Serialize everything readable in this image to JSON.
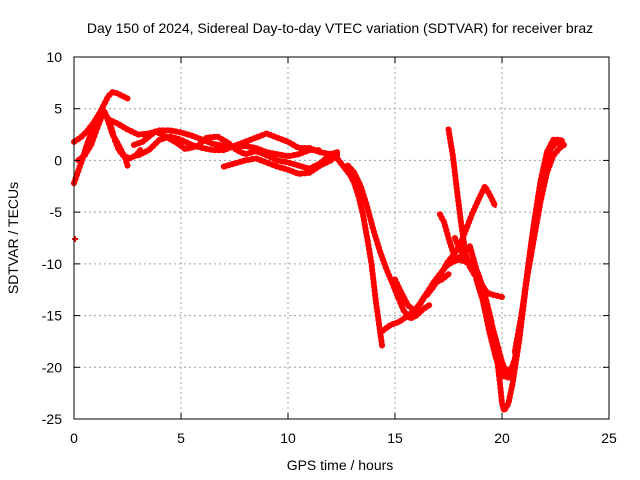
{
  "chart_data": {
    "type": "scatter",
    "title": "Day 150 of 2024, Sidereal Day-to-day VTEC variation (SDTVAR) for receiver braz",
    "xlabel": "GPS time / hours",
    "ylabel": "SDTVAR / TECUs",
    "xlim": [
      0,
      25
    ],
    "ylim": [
      -25,
      10
    ],
    "xticks": [
      0,
      5,
      10,
      15,
      20,
      25
    ],
    "yticks": [
      -25,
      -20,
      -15,
      -10,
      -5,
      0,
      5,
      10
    ],
    "xtick_labels": [
      "0",
      "5",
      "10",
      "15",
      "20",
      "25"
    ],
    "ytick_labels": [
      "-25",
      "-20",
      "-15",
      "-10",
      "-5",
      "0",
      "5",
      "10"
    ],
    "grid": true,
    "marker_color": "#ff0000",
    "series": [
      {
        "name": "track-1",
        "points": [
          [
            0.0,
            1.8
          ],
          [
            0.3,
            2.2
          ],
          [
            0.6,
            2.8
          ],
          [
            0.9,
            3.6
          ],
          [
            1.2,
            4.6
          ],
          [
            1.4,
            5.4
          ],
          [
            1.6,
            6.2
          ],
          [
            1.8,
            6.6
          ],
          [
            2.0,
            6.5
          ],
          [
            2.2,
            6.3
          ],
          [
            2.5,
            6.0
          ]
        ]
      },
      {
        "name": "track-2",
        "points": [
          [
            0.0,
            -2.2
          ],
          [
            0.2,
            -1.0
          ],
          [
            0.4,
            0.2
          ],
          [
            0.6,
            1.5
          ],
          [
            0.8,
            2.6
          ],
          [
            1.0,
            3.6
          ],
          [
            1.2,
            4.4
          ],
          [
            1.4,
            4.8
          ],
          [
            1.6,
            3.8
          ],
          [
            1.8,
            2.5
          ],
          [
            2.0,
            1.8
          ],
          [
            2.2,
            1.0
          ],
          [
            2.4,
            0.2
          ],
          [
            2.5,
            -0.5
          ]
        ]
      },
      {
        "name": "track-3",
        "points": [
          [
            0.2,
            0.0
          ],
          [
            0.5,
            0.5
          ],
          [
            0.8,
            1.5
          ],
          [
            1.1,
            3.2
          ],
          [
            1.4,
            4.8
          ],
          [
            1.7,
            3.5
          ],
          [
            1.9,
            2.0
          ],
          [
            2.1,
            1.0
          ],
          [
            2.3,
            0.5
          ],
          [
            2.6,
            0.2
          ],
          [
            2.9,
            0.5
          ],
          [
            3.1,
            1.0
          ]
        ]
      },
      {
        "name": "track-4",
        "points": [
          [
            1.6,
            4.0
          ],
          [
            2.0,
            3.6
          ],
          [
            2.5,
            3.0
          ],
          [
            3.0,
            2.5
          ],
          [
            3.5,
            2.6
          ],
          [
            4.0,
            2.9
          ],
          [
            4.5,
            2.9
          ],
          [
            5.0,
            2.7
          ],
          [
            5.5,
            2.4
          ],
          [
            6.0,
            2.0
          ],
          [
            6.5,
            1.6
          ],
          [
            7.0,
            1.4
          ],
          [
            7.5,
            1.3
          ],
          [
            8.0,
            1.4
          ],
          [
            8.5,
            1.2
          ],
          [
            9.0,
            0.8
          ],
          [
            9.5,
            0.6
          ],
          [
            10.0,
            0.4
          ],
          [
            10.5,
            0.6
          ],
          [
            11.0,
            1.0
          ],
          [
            11.5,
            1.0
          ]
        ]
      },
      {
        "name": "track-5",
        "points": [
          [
            3.0,
            0.5
          ],
          [
            3.5,
            1.0
          ],
          [
            4.0,
            2.0
          ],
          [
            4.5,
            2.3
          ],
          [
            5.0,
            2.0
          ],
          [
            5.5,
            1.5
          ],
          [
            6.0,
            1.2
          ],
          [
            6.5,
            1.0
          ],
          [
            7.0,
            1.0
          ],
          [
            7.5,
            1.4
          ],
          [
            8.0,
            1.8
          ],
          [
            8.5,
            2.2
          ],
          [
            9.0,
            2.6
          ],
          [
            9.5,
            2.2
          ],
          [
            10.0,
            1.8
          ],
          [
            10.5,
            1.2
          ],
          [
            11.0,
            1.2
          ],
          [
            11.5,
            0.8
          ],
          [
            12.0,
            0.6
          ],
          [
            12.3,
            0.8
          ]
        ]
      },
      {
        "name": "track-6",
        "points": [
          [
            2.8,
            1.5
          ],
          [
            3.2,
            1.8
          ],
          [
            3.8,
            2.8
          ],
          [
            4.2,
            2.4
          ],
          [
            4.8,
            1.7
          ],
          [
            5.2,
            1.1
          ],
          [
            5.8,
            1.4
          ],
          [
            6.2,
            2.2
          ],
          [
            6.7,
            2.3
          ],
          [
            7.2,
            1.7
          ],
          [
            7.6,
            1.0
          ],
          [
            8.0,
            0.6
          ],
          [
            8.5,
            0.9
          ],
          [
            9.0,
            0.5
          ],
          [
            9.5,
            0.0
          ],
          [
            10.0,
            -0.2
          ],
          [
            10.5,
            -0.5
          ],
          [
            11.0,
            -0.8
          ],
          [
            11.5,
            -0.3
          ],
          [
            12.0,
            0.6
          ]
        ]
      },
      {
        "name": "track-7",
        "points": [
          [
            7.0,
            -0.6
          ],
          [
            7.5,
            -0.3
          ],
          [
            8.0,
            0.0
          ],
          [
            8.5,
            0.2
          ],
          [
            9.0,
            -0.2
          ],
          [
            9.5,
            -0.6
          ],
          [
            10.0,
            -0.9
          ],
          [
            10.5,
            -1.3
          ],
          [
            11.0,
            -1.2
          ],
          [
            11.5,
            -0.5
          ],
          [
            12.0,
            0.0
          ],
          [
            12.3,
            0.5
          ]
        ]
      },
      {
        "name": "track-8",
        "points": [
          [
            12.0,
            0.6
          ],
          [
            12.3,
            0.2
          ],
          [
            12.6,
            -0.6
          ],
          [
            12.9,
            -1.4
          ],
          [
            13.1,
            -2.2
          ],
          [
            13.3,
            -3.5
          ],
          [
            13.5,
            -5.2
          ],
          [
            13.7,
            -7.5
          ],
          [
            13.9,
            -10.0
          ],
          [
            14.1,
            -13.5
          ],
          [
            14.3,
            -16.5
          ],
          [
            14.4,
            -18.0
          ]
        ]
      },
      {
        "name": "track-9",
        "points": [
          [
            12.8,
            -0.5
          ],
          [
            13.1,
            -1.2
          ],
          [
            13.4,
            -2.5
          ],
          [
            13.7,
            -4.5
          ],
          [
            14.0,
            -6.8
          ],
          [
            14.3,
            -8.8
          ],
          [
            14.6,
            -10.5
          ],
          [
            14.9,
            -12.0
          ],
          [
            15.1,
            -13.0
          ],
          [
            15.4,
            -14.5
          ],
          [
            15.7,
            -15.3
          ],
          [
            16.0,
            -15.0
          ],
          [
            16.3,
            -14.4
          ],
          [
            16.6,
            -14.0
          ]
        ]
      },
      {
        "name": "track-10",
        "points": [
          [
            14.4,
            -16.5
          ],
          [
            14.8,
            -15.9
          ],
          [
            15.2,
            -15.6
          ],
          [
            15.6,
            -15.0
          ],
          [
            16.0,
            -14.4
          ],
          [
            16.3,
            -13.4
          ],
          [
            16.6,
            -12.5
          ],
          [
            16.9,
            -11.8
          ],
          [
            17.2,
            -11.5
          ],
          [
            17.5,
            -11.0
          ]
        ]
      },
      {
        "name": "track-11",
        "points": [
          [
            15.0,
            -11.5
          ],
          [
            15.3,
            -12.8
          ],
          [
            15.6,
            -14.0
          ],
          [
            15.9,
            -14.5
          ],
          [
            16.2,
            -13.8
          ],
          [
            16.5,
            -12.8
          ],
          [
            16.8,
            -11.8
          ],
          [
            17.1,
            -11.0
          ],
          [
            17.4,
            -10.2
          ],
          [
            17.7,
            -9.8
          ],
          [
            18.0,
            -9.6
          ],
          [
            18.3,
            -9.8
          ],
          [
            18.6,
            -10.2
          ]
        ]
      },
      {
        "name": "track-12",
        "points": [
          [
            16.5,
            -13.0
          ],
          [
            16.8,
            -12.2
          ],
          [
            17.1,
            -11.2
          ],
          [
            17.4,
            -10.0
          ],
          [
            17.7,
            -9.2
          ],
          [
            18.0,
            -8.3
          ],
          [
            18.3,
            -6.8
          ],
          [
            18.6,
            -5.2
          ],
          [
            18.9,
            -3.8
          ],
          [
            19.2,
            -2.5
          ],
          [
            19.5,
            -3.6
          ],
          [
            19.7,
            -4.5
          ]
        ]
      },
      {
        "name": "track-13",
        "points": [
          [
            17.1,
            -5.2
          ],
          [
            17.3,
            -6.0
          ],
          [
            17.5,
            -7.5
          ],
          [
            17.7,
            -8.8
          ],
          [
            17.9,
            -9.6
          ],
          [
            18.2,
            -9.0
          ],
          [
            18.5,
            -8.3
          ],
          [
            18.8,
            -10.5
          ],
          [
            19.1,
            -12.8
          ],
          [
            19.4,
            -15.0
          ],
          [
            19.7,
            -17.2
          ],
          [
            20.0,
            -19.5
          ],
          [
            20.2,
            -20.5
          ],
          [
            20.4,
            -20.0
          ]
        ]
      },
      {
        "name": "track-14",
        "points": [
          [
            17.5,
            3.0
          ],
          [
            17.7,
            0.5
          ],
          [
            17.9,
            -3.0
          ],
          [
            18.1,
            -6.2
          ],
          [
            18.3,
            -9.0
          ],
          [
            18.5,
            -10.3
          ],
          [
            18.7,
            -11.0
          ],
          [
            19.0,
            -11.8
          ],
          [
            19.3,
            -12.8
          ],
          [
            19.6,
            -13.0
          ],
          [
            20.0,
            -13.2
          ]
        ]
      },
      {
        "name": "track-15",
        "points": [
          [
            17.8,
            -7.5
          ],
          [
            18.0,
            -8.5
          ],
          [
            18.3,
            -9.5
          ],
          [
            18.6,
            -10.0
          ],
          [
            18.9,
            -11.0
          ],
          [
            19.2,
            -13.0
          ],
          [
            19.5,
            -15.5
          ],
          [
            19.7,
            -18.0
          ],
          [
            19.9,
            -21.5
          ],
          [
            20.0,
            -23.5
          ],
          [
            20.1,
            -24.2
          ],
          [
            20.3,
            -23.5
          ],
          [
            20.5,
            -21.5
          ],
          [
            20.8,
            -17.5
          ],
          [
            21.1,
            -12.5
          ],
          [
            21.4,
            -7.5
          ],
          [
            21.7,
            -3.5
          ],
          [
            22.0,
            -0.5
          ],
          [
            22.3,
            1.2
          ],
          [
            22.6,
            1.8
          ],
          [
            22.8,
            1.5
          ]
        ]
      },
      {
        "name": "track-16",
        "points": [
          [
            18.8,
            -11.5
          ],
          [
            19.1,
            -13.5
          ],
          [
            19.4,
            -16.5
          ],
          [
            19.7,
            -19.0
          ],
          [
            20.0,
            -20.8
          ],
          [
            20.3,
            -21.0
          ],
          [
            20.6,
            -19.2
          ],
          [
            20.9,
            -15.2
          ],
          [
            21.2,
            -10.5
          ],
          [
            21.5,
            -6.0
          ],
          [
            21.8,
            -2.0
          ],
          [
            22.1,
            0.8
          ],
          [
            22.4,
            2.0
          ],
          [
            22.7,
            2.0
          ],
          [
            22.9,
            1.8
          ]
        ]
      },
      {
        "name": "track-17",
        "points": [
          [
            20.6,
            -18.5
          ],
          [
            20.9,
            -15.0
          ],
          [
            21.2,
            -11.0
          ],
          [
            21.5,
            -7.5
          ],
          [
            21.8,
            -4.0
          ],
          [
            22.1,
            -1.2
          ],
          [
            22.4,
            0.5
          ],
          [
            22.7,
            1.2
          ],
          [
            22.9,
            1.5
          ]
        ]
      },
      {
        "name": "outlier",
        "points": [
          [
            0.05,
            -7.6
          ]
        ]
      }
    ]
  }
}
